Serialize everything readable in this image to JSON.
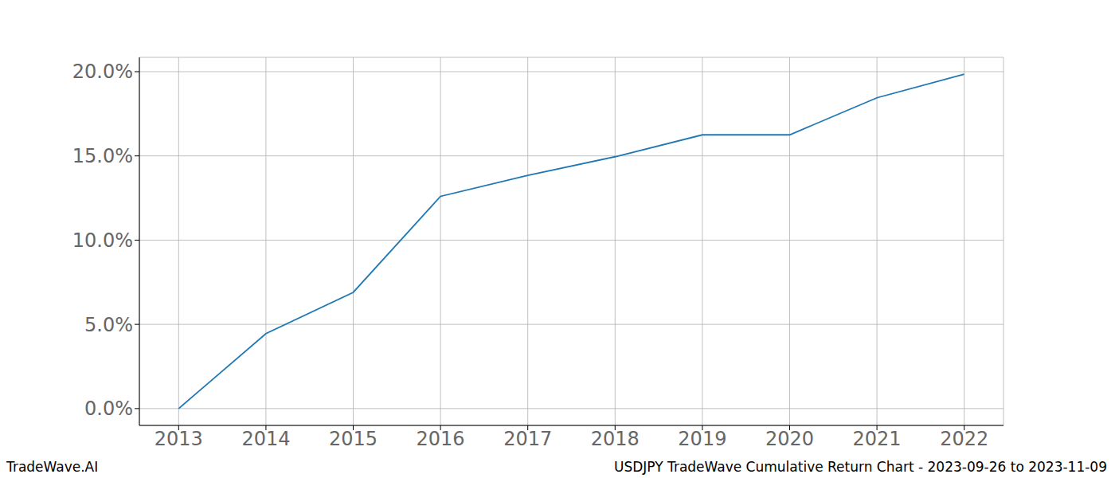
{
  "chart_data": {
    "type": "line",
    "title": "USDJPY TradeWave Cumulative Return Chart - 2023-09-26 to 2023-11-09",
    "source": "TradeWave.AI",
    "x": [
      2013,
      2014,
      2015,
      2016,
      2017,
      2018,
      2019,
      2020,
      2021,
      2022
    ],
    "values": [
      0.0,
      4.45,
      6.9,
      12.6,
      13.85,
      14.95,
      16.25,
      16.25,
      18.45,
      19.85
    ],
    "color": "#1f77b4",
    "xlim": [
      2012.55,
      2022.45
    ],
    "xticks": [
      2013,
      2014,
      2015,
      2016,
      2017,
      2018,
      2019,
      2020,
      2021,
      2022
    ],
    "ylim": [
      -1,
      20.85
    ],
    "yticks": [
      {
        "value": 0,
        "label": "0.0%"
      },
      {
        "value": 5,
        "label": "5.0%"
      },
      {
        "value": 10,
        "label": "10.0%"
      },
      {
        "value": 15,
        "label": "15.0%"
      },
      {
        "value": 20,
        "label": "20.0%"
      }
    ],
    "grid": true
  }
}
